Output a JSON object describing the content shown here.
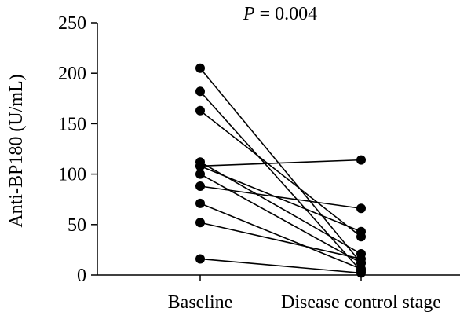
{
  "chart_data": {
    "type": "scatter",
    "annotation": "P = 0.004",
    "annotation_italic": "P",
    "annotation_rest": " = 0.004",
    "ylabel": "Anti-BP180 (U/mL)",
    "xlabel": "",
    "categories": [
      "Baseline",
      "Disease control stage"
    ],
    "ylim": [
      0,
      250
    ],
    "yticks": [
      0,
      50,
      100,
      150,
      200,
      250
    ],
    "ytick_labels": [
      "0",
      "50",
      "100",
      "150",
      "200",
      "250"
    ],
    "grid": false,
    "legend": "none",
    "marker_color": "#000000",
    "pairs": [
      {
        "baseline": 205,
        "control": 12
      },
      {
        "baseline": 182,
        "control": 4
      },
      {
        "baseline": 163,
        "control": 38
      },
      {
        "baseline": 112,
        "control": 21
      },
      {
        "baseline": 108,
        "control": 114
      },
      {
        "baseline": 108,
        "control": 43
      },
      {
        "baseline": 100,
        "control": 12
      },
      {
        "baseline": 88,
        "control": 66
      },
      {
        "baseline": 71,
        "control": 6
      },
      {
        "baseline": 52,
        "control": 16
      },
      {
        "baseline": 16,
        "control": 2
      }
    ]
  }
}
